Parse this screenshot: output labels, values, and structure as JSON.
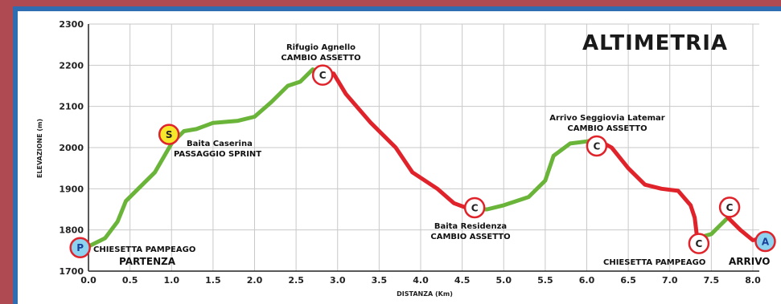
{
  "chart_data": {
    "type": "line",
    "title": "ALTIMETRIA",
    "xlabel": "DISTANZA (Km)",
    "ylabel": "ELEVAZIONE (m)",
    "xlim": [
      0,
      8.0
    ],
    "ylim": [
      1700,
      2300
    ],
    "x_ticks": [
      "0.0",
      "0.5",
      "1.0",
      "1.5",
      "2.0",
      "2.5",
      "3.0",
      "3.5",
      "4.0",
      "4.5",
      "5.0",
      "5.5",
      "6.0",
      "6.5",
      "7.0",
      "7.5",
      "8.0"
    ],
    "y_ticks": [
      "1700",
      "1800",
      "1900",
      "2000",
      "2100",
      "2200",
      "2300"
    ],
    "grid": true,
    "series": [
      {
        "color": "#6ab539",
        "points": [
          [
            0,
            1760
          ],
          [
            0.2,
            1780
          ],
          [
            0.35,
            1820
          ],
          [
            0.45,
            1870
          ],
          [
            0.6,
            1900
          ],
          [
            0.8,
            1940
          ],
          [
            1.0,
            2010
          ],
          [
            1.15,
            2040
          ],
          [
            1.3,
            2045
          ],
          [
            1.5,
            2060
          ],
          [
            1.8,
            2065
          ],
          [
            2.0,
            2075
          ],
          [
            2.2,
            2110
          ],
          [
            2.4,
            2150
          ],
          [
            2.55,
            2160
          ],
          [
            2.7,
            2190
          ],
          [
            2.82,
            2180
          ]
        ]
      },
      {
        "color": "#e0232a",
        "points": [
          [
            2.82,
            2180
          ],
          [
            2.95,
            2180
          ],
          [
            3.1,
            2130
          ],
          [
            3.4,
            2060
          ],
          [
            3.7,
            2000
          ],
          [
            3.9,
            1940
          ],
          [
            4.2,
            1900
          ],
          [
            4.4,
            1865
          ],
          [
            4.6,
            1850
          ]
        ]
      },
      {
        "color": "#6ab539",
        "points": [
          [
            4.6,
            1850
          ],
          [
            4.8,
            1850
          ],
          [
            5.0,
            1860
          ],
          [
            5.3,
            1880
          ],
          [
            5.5,
            1920
          ],
          [
            5.6,
            1980
          ],
          [
            5.8,
            2010
          ],
          [
            6.0,
            2015
          ],
          [
            6.12,
            2020
          ]
        ]
      },
      {
        "color": "#e0232a",
        "points": [
          [
            6.12,
            2020
          ],
          [
            6.3,
            2000
          ],
          [
            6.5,
            1950
          ],
          [
            6.7,
            1910
          ],
          [
            6.9,
            1900
          ],
          [
            7.1,
            1895
          ],
          [
            7.25,
            1860
          ],
          [
            7.3,
            1830
          ],
          [
            7.33,
            1780
          ]
        ]
      },
      {
        "color": "#6ab539",
        "points": [
          [
            7.33,
            1780
          ],
          [
            7.5,
            1790
          ],
          [
            7.6,
            1810
          ],
          [
            7.7,
            1830
          ]
        ]
      },
      {
        "color": "#e0232a",
        "points": [
          [
            7.7,
            1830
          ],
          [
            7.85,
            1800
          ],
          [
            8.0,
            1775
          ],
          [
            8.1,
            1780
          ]
        ]
      }
    ],
    "markers": [
      {
        "label": "P",
        "x": -0.1,
        "y": 1757,
        "fill": "#8dd3f0",
        "stroke": "#e0232a",
        "text_color": "#1a3f99"
      },
      {
        "label": "S",
        "x": 0.97,
        "y": 2032,
        "fill": "#f6e72a",
        "stroke": "#e0232a",
        "text_color": "#222222"
      },
      {
        "label": "C",
        "x": 2.82,
        "y": 2176,
        "fill": "#ffffff",
        "stroke": "#e0232a",
        "text_color": "#222222"
      },
      {
        "label": "C",
        "x": 4.65,
        "y": 1854,
        "fill": "#ffffff",
        "stroke": "#e0232a",
        "text_color": "#222222"
      },
      {
        "label": "C",
        "x": 6.12,
        "y": 2004,
        "fill": "#ffffff",
        "stroke": "#e0232a",
        "text_color": "#222222"
      },
      {
        "label": "C",
        "x": 7.35,
        "y": 1767,
        "fill": "#ffffff",
        "stroke": "#e0232a",
        "text_color": "#222222"
      },
      {
        "label": "C",
        "x": 7.72,
        "y": 1855,
        "fill": "#ffffff",
        "stroke": "#e0232a",
        "text_color": "#222222"
      },
      {
        "label": "A",
        "x": 8.15,
        "y": 1772,
        "fill": "#8dd3f0",
        "stroke": "#e0232a",
        "text_color": "#1a3f99"
      }
    ],
    "annotations": [
      {
        "lines": [
          "CHIESETTA PAMPEAGO",
          "PARTENZA"
        ]
      },
      {
        "lines": [
          "Baita Caserina",
          "PASSAGGIO SPRINT"
        ]
      },
      {
        "lines": [
          "Rifugio Agnello",
          "CAMBIO ASSETTO"
        ]
      },
      {
        "lines": [
          "Baita Residenza",
          "CAMBIO ASSETTO"
        ]
      },
      {
        "lines": [
          "Arrivo Seggiovia Latemar",
          "CAMBIO ASSETTO"
        ]
      },
      {
        "lines": [
          "CHIESETTA PAMPEAGO",
          "ARRIVO"
        ]
      }
    ]
  }
}
